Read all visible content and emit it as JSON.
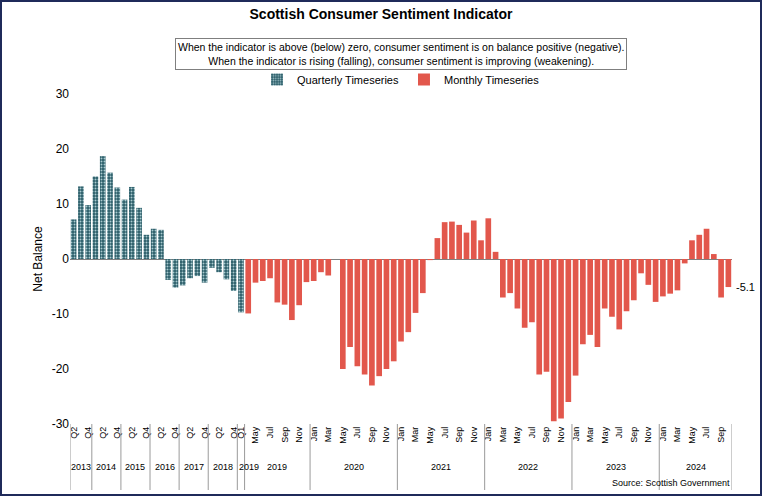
{
  "chart_data": {
    "type": "bar",
    "title": "Scottish Consumer Sentiment Indicator",
    "subtitle": [
      "When the indicator is above (below) zero, consumer sentiment is on balance positive (negative).",
      "When the indicator is rising (falling), consumer sentiment is improving (weakening)."
    ],
    "y_label": "Net Balance",
    "source": "Source: Scottish Government",
    "categories": [
      "Q2",
      null,
      "Q4",
      null,
      "Q2",
      null,
      "Q4",
      null,
      "Q2",
      null,
      "Q4",
      null,
      "Q2",
      null,
      "Q4",
      null,
      "Q2",
      null,
      "Q4",
      null,
      "Q2",
      null,
      "Q4",
      "Q1",
      null,
      "May",
      null,
      "Jul",
      null,
      "Sep",
      null,
      "Nov",
      null,
      "Jan",
      null,
      "Mar",
      null,
      "May",
      null,
      "Jul",
      null,
      "Sep",
      null,
      "Nov",
      null,
      "Jan",
      null,
      "Mar",
      null,
      "May",
      null,
      "Jul",
      null,
      "Sep",
      null,
      "Nov",
      null,
      "Jan",
      null,
      "Mar",
      null,
      "May",
      null,
      "Jul",
      null,
      "Sep",
      null,
      "Nov",
      null,
      "Jan",
      null,
      "Mar",
      null,
      "May",
      null,
      "Jul",
      null,
      "Sep",
      null,
      "Nov",
      null,
      "Jan",
      null,
      "Mar",
      null,
      "May",
      null,
      "Jul",
      null,
      "Sep",
      null
    ],
    "groups": [
      {
        "label": "2013",
        "from": 0,
        "to": 2
      },
      {
        "label": "2014",
        "from": 3,
        "to": 6
      },
      {
        "label": "2015",
        "from": 7,
        "to": 10
      },
      {
        "label": "2016",
        "from": 11,
        "to": 14
      },
      {
        "label": "2017",
        "from": 15,
        "to": 18
      },
      {
        "label": "2018",
        "from": 19,
        "to": 22
      },
      {
        "label": "2019",
        "from": 23,
        "to": 23
      },
      {
        "label": "2019",
        "from": 24,
        "to": 32
      },
      {
        "label": "2020",
        "from": 33,
        "to": 44
      },
      {
        "label": "2021",
        "from": 45,
        "to": 56
      },
      {
        "label": "2022",
        "from": 57,
        "to": 68
      },
      {
        "label": "2023",
        "from": 69,
        "to": 80
      },
      {
        "label": "2024",
        "from": 81,
        "to": 90
      }
    ],
    "series": [
      {
        "name": "Quarterly Timeseries",
        "color": "#2a5c68",
        "marker": "dotted",
        "values": [
          7.2,
          13.2,
          9.8,
          15.0,
          18.7,
          15.7,
          13.0,
          10.8,
          13.1,
          9.3,
          4.4,
          5.5,
          5.3,
          -3.8,
          -5.2,
          -4.8,
          -3.5,
          -3.1,
          -4.3,
          -1.6,
          -2.4,
          -3.7,
          -5.8,
          -9.7,
          null,
          null,
          null,
          null,
          null,
          null,
          null,
          null,
          null,
          null,
          null,
          null,
          null,
          null,
          null,
          null,
          null,
          null,
          null,
          null,
          null,
          null,
          null,
          null,
          null,
          null,
          null,
          null,
          null,
          null,
          null,
          null,
          null,
          null,
          null,
          null,
          null,
          null,
          null,
          null,
          null,
          null,
          null,
          null,
          null,
          null,
          null,
          null,
          null,
          null,
          null,
          null,
          null,
          null,
          null,
          null,
          null,
          null,
          null,
          null,
          null,
          null,
          null,
          null,
          null,
          null,
          null
        ]
      },
      {
        "name": "Monthly Timeseries",
        "color": "#e2574c",
        "values": [
          null,
          null,
          null,
          null,
          null,
          null,
          null,
          null,
          null,
          null,
          null,
          null,
          null,
          null,
          null,
          null,
          null,
          null,
          null,
          null,
          null,
          null,
          null,
          null,
          -9.9,
          -4.3,
          -4.0,
          -3.5,
          -7.9,
          -8.3,
          -11.1,
          -8.4,
          -4.2,
          -4.0,
          -2.4,
          -3.0,
          null,
          -20.0,
          -16.0,
          -19.5,
          -21.0,
          -23.0,
          -21.3,
          -20.0,
          -18.6,
          -15.0,
          -13.3,
          -9.8,
          -6.2,
          -0.2,
          3.8,
          6.7,
          6.8,
          6.2,
          4.8,
          7.0,
          3.4,
          7.4,
          1.3,
          -7.0,
          -6.2,
          -9.0,
          -12.5,
          -11.5,
          -21.0,
          -20.5,
          -29.5,
          -29.0,
          -26.0,
          -21.2,
          -15.5,
          -13.8,
          -16.0,
          -9.0,
          -10.5,
          -12.8,
          -9.5,
          -7.5,
          -2.6,
          -4.7,
          -7.8,
          -6.8,
          -6.3,
          -5.7,
          -0.8,
          3.4,
          4.4,
          5.5,
          0.9,
          -7.0,
          -5.1
        ]
      }
    ],
    "annotations": [
      {
        "text": "-5.1",
        "index": 90
      }
    ],
    "ylim": [
      -30,
      30
    ],
    "yticks": [
      -30,
      -20,
      -10,
      0,
      10,
      20,
      30
    ],
    "grid": false,
    "legend": "top"
  }
}
